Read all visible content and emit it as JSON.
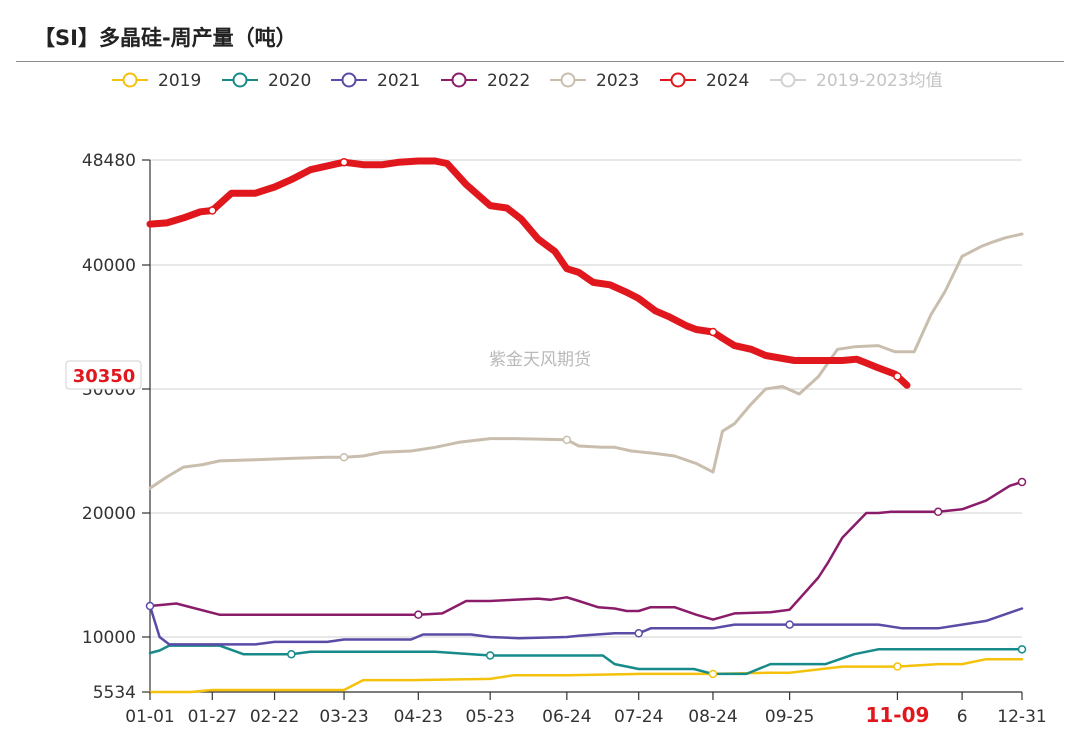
{
  "title": "【SI】多晶硅-周产量（吨）",
  "watermark": "紫金天风期货",
  "pointer_label": "30350",
  "chart_data": {
    "type": "line",
    "title": "【SI】多晶硅-周产量（吨）",
    "xlabel": "",
    "ylabel": "",
    "ylim": [
      5534,
      48480
    ],
    "y_ticks": [
      "48480",
      "40000",
      "30000",
      "20000",
      "10000",
      "5534"
    ],
    "y_tick_values": [
      48480,
      40000,
      30000,
      20000,
      10000,
      5534
    ],
    "x_range": [
      1,
      365
    ],
    "x_ticks": [
      {
        "label": "01-01",
        "day": 1
      },
      {
        "label": "01-27",
        "day": 27
      },
      {
        "label": "02-22",
        "day": 53
      },
      {
        "label": "03-23",
        "day": 82
      },
      {
        "label": "04-23",
        "day": 113
      },
      {
        "label": "05-23",
        "day": 143
      },
      {
        "label": "06-24",
        "day": 175
      },
      {
        "label": "07-24",
        "day": 205
      },
      {
        "label": "08-24",
        "day": 236
      },
      {
        "label": "09-25",
        "day": 268
      },
      {
        "label": "11-09",
        "day": 313,
        "highlight": true
      },
      {
        "label": "6",
        "day": 340
      },
      {
        "label": "12-31",
        "day": 365
      }
    ],
    "grid": true,
    "legend_position": "top",
    "series": [
      {
        "name": "2019",
        "color": "#f4c20d",
        "width": 2.5,
        "x": [
          1,
          18,
          27,
          53,
          82,
          90,
          110,
          143,
          153,
          175,
          205,
          236,
          260,
          268,
          290,
          303,
          313,
          330,
          340,
          350,
          365
        ],
        "y": [
          5534,
          5534,
          5700,
          5700,
          5700,
          6500,
          6500,
          6600,
          6900,
          6900,
          7000,
          7000,
          7100,
          7100,
          7600,
          7600,
          7600,
          7800,
          7800,
          8200,
          8200
        ]
      },
      {
        "name": "2020",
        "color": "#178a8a",
        "width": 2.5,
        "x": [
          1,
          5,
          9,
          15,
          23,
          30,
          40,
          53,
          60,
          68,
          82,
          95,
          110,
          120,
          143,
          165,
          190,
          195,
          205,
          215,
          220,
          228,
          236,
          240,
          250,
          260,
          268,
          283,
          295,
          305,
          313,
          330,
          340,
          350,
          365
        ],
        "y": [
          8700,
          8900,
          9300,
          9300,
          9300,
          9300,
          8600,
          8600,
          8600,
          8800,
          8800,
          8800,
          8800,
          8800,
          8500,
          8500,
          8500,
          7800,
          7400,
          7400,
          7400,
          7400,
          7000,
          7000,
          7000,
          7800,
          7800,
          7800,
          8600,
          9000,
          9000,
          9000,
          9000,
          9000,
          9000
        ]
      },
      {
        "name": "2021",
        "color": "#5b4ba6",
        "width": 2.5,
        "x": [
          1,
          5,
          9,
          15,
          30,
          45,
          53,
          60,
          68,
          75,
          82,
          95,
          110,
          115,
          135,
          143,
          155,
          175,
          180,
          195,
          205,
          210,
          236,
          245,
          260,
          268,
          295,
          305,
          315,
          330,
          340,
          350,
          365
        ],
        "y": [
          12500,
          10000,
          9400,
          9400,
          9400,
          9400,
          9600,
          9600,
          9600,
          9600,
          9800,
          9800,
          9800,
          10200,
          10200,
          10000,
          9900,
          10000,
          10100,
          10300,
          10300,
          10700,
          10700,
          11000,
          11000,
          11000,
          11000,
          11000,
          10700,
          10700,
          11000,
          11300,
          12300
        ]
      },
      {
        "name": "2022",
        "color": "#8a1c6a",
        "width": 2.5,
        "x": [
          1,
          12,
          16,
          30,
          60,
          82,
          100,
          113,
          123,
          133,
          143,
          153,
          163,
          168,
          175,
          180,
          188,
          195,
          200,
          205,
          210,
          220,
          229,
          236,
          245,
          260,
          268,
          280,
          284,
          290,
          295,
          300,
          305,
          310,
          320,
          330,
          340,
          350,
          360,
          365
        ],
        "y": [
          12500,
          12700,
          12500,
          11800,
          11800,
          11800,
          11800,
          11800,
          11900,
          12900,
          12900,
          13000,
          13100,
          13000,
          13200,
          12900,
          12400,
          12300,
          12100,
          12100,
          12400,
          12400,
          11800,
          11400,
          11900,
          12000,
          12200,
          14800,
          16000,
          18000,
          19000,
          20000,
          20000,
          20100,
          20100,
          20100,
          20300,
          21000,
          22200,
          22500
        ]
      },
      {
        "name": "2023",
        "color": "#c9beae",
        "width": 3,
        "x": [
          1,
          8,
          15,
          23,
          30,
          45,
          60,
          75,
          82,
          90,
          98,
          110,
          120,
          130,
          143,
          153,
          175,
          180,
          190,
          195,
          202,
          212,
          220,
          229,
          236,
          240,
          245,
          252,
          258,
          265,
          272,
          280,
          288,
          295,
          305,
          312,
          320,
          327,
          333,
          340,
          348,
          352,
          358,
          365
        ],
        "y": [
          22000,
          22900,
          23700,
          23900,
          24200,
          24300,
          24400,
          24500,
          24500,
          24600,
          24900,
          25000,
          25300,
          25700,
          26000,
          26000,
          25900,
          25400,
          25300,
          25300,
          25000,
          24800,
          24600,
          24000,
          23300,
          26600,
          27200,
          28800,
          30000,
          30200,
          29600,
          31000,
          33200,
          33400,
          33500,
          33000,
          33000,
          36000,
          37900,
          40700,
          41500,
          41800,
          42200,
          42500
        ]
      },
      {
        "name": "2024",
        "color": "#e0181d",
        "width": 7,
        "x": [
          1,
          8,
          15,
          22,
          27,
          35,
          45,
          53,
          60,
          68,
          75,
          82,
          90,
          98,
          105,
          113,
          120,
          125,
          133,
          143,
          150,
          156,
          163,
          170,
          175,
          180,
          186,
          193,
          200,
          205,
          212,
          218,
          225,
          229,
          236,
          240,
          245,
          252,
          258,
          264,
          270,
          278,
          285,
          290,
          296,
          300,
          305,
          312,
          317
        ],
        "y": [
          43300,
          43400,
          43800,
          44300,
          44400,
          45800,
          45800,
          46300,
          46900,
          47700,
          48000,
          48300,
          48100,
          48100,
          48300,
          48400,
          48400,
          48200,
          46500,
          44800,
          44600,
          43700,
          42100,
          41100,
          39700,
          39400,
          38600,
          38400,
          37800,
          37300,
          36300,
          35800,
          35100,
          34800,
          34600,
          34100,
          33500,
          33200,
          32700,
          32500,
          32300,
          32300,
          32300,
          32300,
          32400,
          32100,
          31700,
          31200,
          30300
        ]
      }
    ],
    "average_series": {
      "name": "2019-2023均值",
      "color": "#d2d2d2"
    },
    "markers": [
      {
        "series": "2019",
        "x": [
          236,
          313
        ]
      },
      {
        "series": "2020",
        "x": [
          60,
          143,
          365
        ]
      },
      {
        "series": "2021",
        "x": [
          1,
          205,
          268
        ]
      },
      {
        "series": "2022",
        "x": [
          113,
          330,
          365
        ]
      },
      {
        "series": "2023",
        "x": [
          82,
          175
        ]
      },
      {
        "series": "2024",
        "x": [
          27,
          82,
          236,
          313
        ]
      }
    ]
  }
}
